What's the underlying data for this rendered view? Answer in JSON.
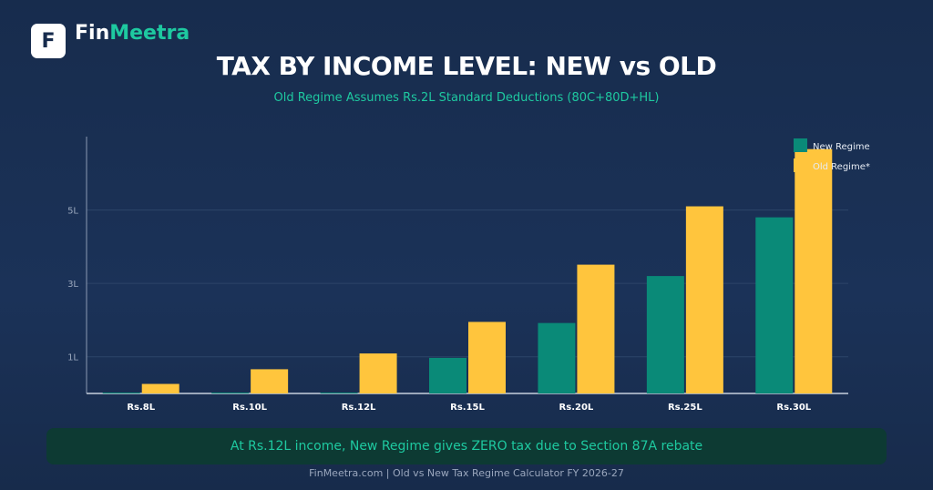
{
  "brand": {
    "logo_letter": "F",
    "name_part1": "Fin",
    "name_part2": "Meetra"
  },
  "colors": {
    "new_regime": "#0a8a78",
    "old_regime": "#ffc53d",
    "accent": "#1ec9a0",
    "background": "#1b3258"
  },
  "chart_data": {
    "type": "bar",
    "title": "TAX BY INCOME LEVEL: NEW vs OLD",
    "subtitle": "Old Regime Assumes Rs.2L Standard Deductions (80C+80D+HL)",
    "categories": [
      "Rs.8L",
      "Rs.10L",
      "Rs.12L",
      "Rs.15L",
      "Rs.20L",
      "Rs.25L",
      "Rs.30L"
    ],
    "series": [
      {
        "name": "New Regime",
        "values": [
          0,
          0,
          0,
          0.97,
          1.92,
          3.2,
          4.8
        ]
      },
      {
        "name": "Old Regime*",
        "values": [
          0.26,
          0.66,
          1.09,
          1.95,
          3.51,
          5.1,
          6.66
        ]
      }
    ],
    "yticks": [
      "1L",
      "3L",
      "5L"
    ],
    "ytick_values": [
      1,
      3,
      5
    ],
    "ylim": [
      0,
      7
    ],
    "grid": true,
    "legend_position": "top-right"
  },
  "banner_text": "At Rs.12L income, New Regime gives ZERO tax due to Section 87A rebate",
  "footer_text": "FinMeetra.com  |  Old vs New Tax Regime Calculator FY 2026-27"
}
